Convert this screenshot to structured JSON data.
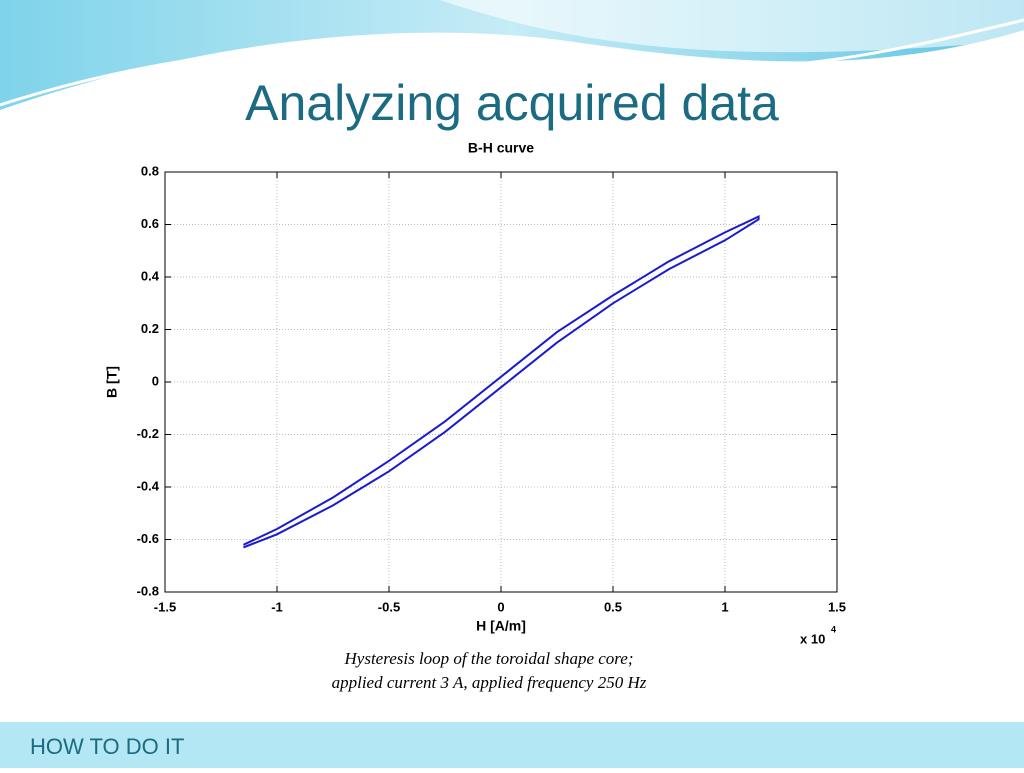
{
  "slide": {
    "title": "Analyzing acquired data",
    "caption": [
      "Hysteresis loop of the toroidal shape core;",
      "applied current 3 A, applied frequency 250 Hz"
    ],
    "footer": "HOW TO DO IT"
  },
  "chart_data": {
    "type": "line",
    "title": "B-H curve",
    "x_label": "H [A/m]",
    "y_label": "B [T]",
    "x_scale_label": "x 10",
    "x_scale_exponent": "4",
    "x": [
      -1.15,
      -1.0,
      -0.75,
      -0.5,
      -0.25,
      0,
      0.25,
      0.5,
      0.75,
      1.0,
      1.15,
      1.15,
      1.0,
      0.75,
      0.5,
      0.25,
      0,
      -0.25,
      -0.5,
      -0.75,
      -1.0,
      -1.15
    ],
    "values": [
      -0.63,
      -0.58,
      -0.47,
      -0.34,
      -0.19,
      -0.02,
      0.15,
      0.3,
      0.43,
      0.54,
      0.62,
      0.63,
      0.57,
      0.46,
      0.33,
      0.19,
      0.02,
      -0.15,
      -0.3,
      -0.44,
      -0.56,
      -0.62
    ],
    "color": "#1a1ad0",
    "xlim": [
      -1.5,
      1.5
    ],
    "xticks": [
      -1.5,
      -1,
      -0.5,
      0,
      0.5,
      1,
      1.5
    ],
    "ylim": [
      -0.8,
      0.8
    ],
    "yticks": [
      -0.8,
      -0.6,
      -0.4,
      -0.2,
      0,
      0.2,
      0.4,
      0.6,
      0.8
    ],
    "grid": true
  }
}
